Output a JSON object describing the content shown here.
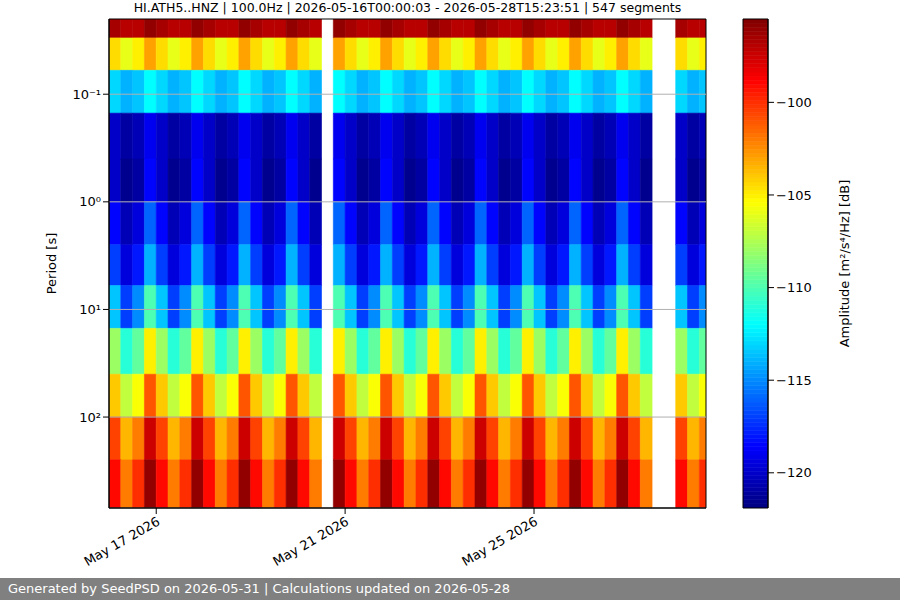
{
  "chart_data": {
    "type": "heatmap",
    "title": "HI.ATH5..HNZ | 100.0Hz | 2026-05-16T00:00:03 - 2026-05-28T15:23:51 | 547 segments",
    "ylabel": "Period [s]",
    "footer": "Generated by SeedPSD on 2026-05-31 | Calculations updated on 2026-05-28",
    "x": [
      "2026-05-16T00:00Z",
      "2026-05-16T06:00Z",
      "2026-05-16T12:00Z",
      "2026-05-16T18:00Z",
      "2026-05-17T00:00Z",
      "2026-05-17T06:00Z",
      "2026-05-17T12:00Z",
      "2026-05-17T18:00Z",
      "2026-05-18T00:00Z",
      "2026-05-18T06:00Z",
      "2026-05-18T12:00Z",
      "2026-05-18T18:00Z",
      "2026-05-19T00:00Z",
      "2026-05-19T06:00Z",
      "2026-05-19T12:00Z",
      "2026-05-19T18:00Z",
      "2026-05-20T00:00Z",
      "2026-05-20T06:00Z",
      "2026-05-20T12:00Z",
      "2026-05-20T18:00Z",
      "2026-05-21T00:00Z",
      "2026-05-21T06:00Z",
      "2026-05-21T12:00Z",
      "2026-05-21T18:00Z",
      "2026-05-22T00:00Z",
      "2026-05-22T06:00Z",
      "2026-05-22T12:00Z",
      "2026-05-22T18:00Z",
      "2026-05-23T00:00Z",
      "2026-05-23T06:00Z",
      "2026-05-23T12:00Z",
      "2026-05-23T18:00Z",
      "2026-05-24T00:00Z",
      "2026-05-24T06:00Z",
      "2026-05-24T12:00Z",
      "2026-05-24T18:00Z",
      "2026-05-25T00:00Z",
      "2026-05-25T06:00Z",
      "2026-05-25T12:00Z",
      "2026-05-25T18:00Z",
      "2026-05-26T00:00Z",
      "2026-05-26T06:00Z",
      "2026-05-26T12:00Z",
      "2026-05-26T18:00Z",
      "2026-05-27T00:00Z",
      "2026-05-27T06:00Z",
      "2026-05-27T12:00Z",
      "2026-05-27T18:00Z",
      "2026-05-28T00:00Z",
      "2026-05-28T06:00Z",
      "2026-05-28T12:00Z"
    ],
    "xlim": [
      "2026-05-16T00:00:03Z",
      "2026-05-28T15:23:51Z"
    ],
    "xticks": [
      {
        "value": "2026-05-17T00:00:00Z",
        "label": "May 17 2026"
      },
      {
        "value": "2026-05-21T00:00:00Z",
        "label": "May 21 2026"
      },
      {
        "value": "2026-05-25T00:00:00Z",
        "label": "May 25 2026"
      }
    ],
    "period_edges": [
      0.02,
      0.03,
      0.06,
      0.15,
      0.4,
      1,
      2.5,
      6,
      15,
      40,
      100,
      250,
      690
    ],
    "ylim": [
      0.02,
      700
    ],
    "yticks": [
      {
        "value": 0.1,
        "label": "10⁻¹"
      },
      {
        "value": 1,
        "label": "10⁰"
      },
      {
        "value": 10,
        "label": "10¹"
      },
      {
        "value": 100,
        "label": "10²"
      }
    ],
    "log": "y",
    "grid": true,
    "z": [
      [
        -96.5,
        -97,
        -97,
        -96,
        -96.5,
        -97,
        -97,
        -96,
        -96.5,
        -97,
        -97,
        -96,
        -96.5,
        -97,
        -97,
        -96,
        -96.5,
        -97,
        null,
        -96,
        -96.5,
        -97,
        -97,
        -96,
        -96.5,
        -97,
        -97,
        -96,
        -96.5,
        -97,
        -97,
        -96,
        -96.5,
        -97,
        -97,
        -96,
        -96.5,
        -97,
        -97,
        -96,
        -96.5,
        -97,
        -97,
        -96,
        -96.5,
        -97,
        null,
        null,
        -96.5,
        -97,
        -97
      ],
      [
        -104.5,
        -106,
        -105,
        -103,
        -104.5,
        -106,
        -105,
        -103,
        -104.5,
        -106,
        -105,
        -103,
        -104.5,
        -106,
        -105,
        -103,
        -104.5,
        -106,
        null,
        -103,
        -104.5,
        -106,
        -105,
        -103,
        -104.5,
        -106,
        -105,
        -103,
        -104.5,
        -106,
        -105,
        -103,
        -104.5,
        -106,
        -105,
        -103,
        -104.5,
        -106,
        -105,
        -103,
        -104.5,
        -106,
        -105,
        -103,
        -104.5,
        -106,
        null,
        null,
        -104.5,
        -106,
        -105
      ],
      [
        -113,
        -114,
        -113.5,
        -112,
        -113,
        -114,
        -113.5,
        -112,
        -113,
        -114,
        -113.5,
        -112,
        -113,
        -114,
        -113.5,
        -112,
        -113,
        -114,
        null,
        -112,
        -113,
        -114,
        -113.5,
        -112,
        -113,
        -114,
        -113.5,
        -112,
        -113,
        -114,
        -113.5,
        -112,
        -113,
        -114,
        -113.5,
        -112,
        -113,
        -114,
        -113.5,
        -112,
        -113,
        -114,
        -113.5,
        -112,
        -113,
        -114,
        null,
        null,
        -113,
        -114,
        -113.5
      ],
      [
        -120,
        -121,
        -120.5,
        -119,
        -120,
        -121,
        -120.5,
        -119,
        -120,
        -121,
        -120.5,
        -119,
        -120,
        -121,
        -120.5,
        -119,
        -120,
        -121,
        null,
        -119,
        -120,
        -121,
        -120.5,
        -119,
        -120,
        -121,
        -120.5,
        -119,
        -120,
        -121,
        -120.5,
        -119,
        -120,
        -121,
        -120.5,
        -119,
        -120,
        -121,
        -120.5,
        -119,
        -120,
        -121,
        -120.5,
        -119,
        -120,
        -121,
        null,
        null,
        -120,
        -121,
        -120.5
      ],
      [
        -120,
        -121.5,
        -121,
        -118.5,
        -120,
        -121.5,
        -121,
        -118.5,
        -120,
        -121.5,
        -121,
        -118.5,
        -120,
        -121.5,
        -121,
        -118.5,
        -120,
        -121.5,
        null,
        -118.5,
        -120,
        -121.5,
        -121,
        -118.5,
        -120,
        -121.5,
        -121,
        -118.5,
        -120,
        -121.5,
        -121,
        -118.5,
        -120,
        -121.5,
        -121,
        -118.5,
        -120,
        -121.5,
        -121,
        -118.5,
        -120,
        -121.5,
        -121,
        -118.5,
        -120,
        -121.5,
        null,
        null,
        -120,
        -121.5,
        -121
      ],
      [
        -118.5,
        -120.5,
        -119.5,
        -116,
        -118.5,
        -120.5,
        -119.5,
        -116,
        -118.5,
        -120.5,
        -119.5,
        -116,
        -118.5,
        -120.5,
        -119.5,
        -116,
        -118.5,
        -120.5,
        null,
        -116,
        -118.5,
        -120.5,
        -119.5,
        -116,
        -118.5,
        -120.5,
        -119.5,
        -116,
        -118.5,
        -120.5,
        -119.5,
        -116,
        -118.5,
        -120.5,
        -119.5,
        -116,
        -118.5,
        -120.5,
        -119.5,
        -116,
        -118.5,
        -120.5,
        -119.5,
        -116,
        -118.5,
        -120.5,
        null,
        null,
        -118.5,
        -120.5,
        -119.5
      ],
      [
        -117,
        -119.5,
        -118,
        -114,
        -117,
        -119.5,
        -118,
        -114,
        -117,
        -119.5,
        -118,
        -114,
        -117,
        -119.5,
        -118,
        -114,
        -117,
        -119.5,
        null,
        -114,
        -117,
        -119.5,
        -118,
        -114,
        -117,
        -119.5,
        -118,
        -114,
        -117,
        -119.5,
        -118,
        -114,
        -117,
        -119.5,
        -118,
        -114,
        -117,
        -119.5,
        -118,
        -114,
        -117,
        -119.5,
        -118,
        -114,
        -117,
        -119.5,
        null,
        null,
        -117,
        -119.5,
        -118
      ],
      [
        -113.5,
        -117,
        -115,
        -110,
        -113.5,
        -117,
        -115,
        -110,
        -113.5,
        -117,
        -115,
        -110,
        -113.5,
        -117,
        -115,
        -110,
        -113.5,
        -117,
        null,
        -110,
        -113.5,
        -117,
        -115,
        -110,
        -113.5,
        -117,
        -115,
        -110,
        -113.5,
        -117,
        -115,
        -110,
        -113.5,
        -117,
        -115,
        -110,
        -113.5,
        -117,
        -115,
        -110,
        -113.5,
        -117,
        -115,
        -110,
        -113.5,
        -117,
        null,
        null,
        -113.5,
        -117,
        -115
      ],
      [
        -108,
        -111,
        -109.5,
        -105,
        -108,
        -111,
        -109.5,
        -105,
        -108,
        -111,
        -109.5,
        -105,
        -108,
        -111,
        -109.5,
        -105,
        -108,
        -111,
        null,
        -105,
        -108,
        -111,
        -109.5,
        -105,
        -108,
        -111,
        -109.5,
        -105,
        -108,
        -111,
        -109.5,
        -105,
        -108,
        -111,
        -109.5,
        -105,
        -108,
        -111,
        -109.5,
        -105,
        -108,
        -111,
        -109.5,
        -105,
        -108,
        -111,
        null,
        null,
        -108,
        -111,
        -109.5
      ],
      [
        -104,
        -107,
        -105.5,
        -101,
        -104,
        -107,
        -105.5,
        -101,
        -104,
        -107,
        -105.5,
        -101,
        -104,
        -107,
        -105.5,
        -101,
        -104,
        -107,
        null,
        -101,
        -104,
        -107,
        -105.5,
        -101,
        -104,
        -107,
        -105.5,
        -101,
        -104,
        -107,
        -105.5,
        -101,
        -104,
        -107,
        -105.5,
        -101,
        -104,
        -107,
        -105.5,
        -101,
        -104,
        -107,
        -105.5,
        -101,
        -104,
        -107,
        null,
        null,
        -104,
        -107,
        -105.5
      ],
      [
        -100.5,
        -103.5,
        -102,
        -97.5,
        -100.5,
        -103.5,
        -102,
        -97.5,
        -100.5,
        -103.5,
        -102,
        -97.5,
        -100.5,
        -103.5,
        -102,
        -97.5,
        -100.5,
        -103.5,
        null,
        -97.5,
        -100.5,
        -103.5,
        -102,
        -97.5,
        -100.5,
        -103.5,
        -102,
        -97.5,
        -100.5,
        -103.5,
        -102,
        -97.5,
        -100.5,
        -103.5,
        -102,
        -97.5,
        -100.5,
        -103.5,
        -102,
        -97.5,
        -100.5,
        -103.5,
        -102,
        -97.5,
        -100.5,
        -103.5,
        null,
        null,
        -100.5,
        -103.5,
        -102
      ],
      [
        -99,
        -102,
        -100,
        -96,
        -99,
        -102,
        -100,
        -96,
        -99,
        -102,
        -100,
        -96,
        -99,
        -102,
        -100,
        -96,
        -99,
        -102,
        null,
        -96,
        -99,
        -102,
        -100,
        -96,
        -99,
        -102,
        -100,
        -96,
        -99,
        -102,
        -100,
        -96,
        -99,
        -102,
        -100,
        -96,
        -99,
        -102,
        -100,
        -96,
        -99,
        -102,
        -100,
        -96,
        -99,
        -102,
        null,
        null,
        -99,
        -102,
        -100
      ]
    ],
    "colorbar": {
      "range": [
        -121.9,
        -95.5
      ],
      "ticks": [
        {
          "value": -120,
          "label": "−120"
        },
        {
          "value": -115,
          "label": "−115"
        },
        {
          "value": -110,
          "label": "−110"
        },
        {
          "value": -105,
          "label": "−105"
        },
        {
          "value": -100,
          "label": "−100"
        }
      ],
      "label": "Amplitude [m²/s⁴/Hz] [dB]"
    }
  }
}
